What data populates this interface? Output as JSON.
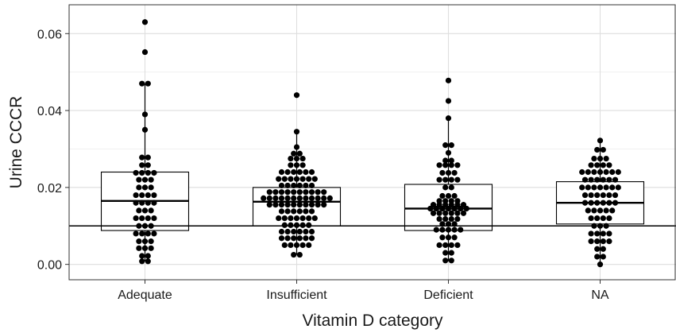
{
  "chart_data": {
    "type": "box-dotplot",
    "xlabel": "Vitamin D category",
    "ylabel": "Urine CCCR",
    "categories": [
      "Adequate",
      "Insufficient",
      "Deficient",
      "NA"
    ],
    "ylim": [
      -0.004,
      0.0675
    ],
    "yticks": [
      0.0,
      0.02,
      0.04,
      0.06
    ],
    "ytick_labels": [
      "0.00",
      "0.02",
      "0.04",
      "0.06"
    ],
    "grid": true,
    "reference_line": 0.01,
    "boxes": [
      {
        "category": "Adequate",
        "q1": 0.0088,
        "median": 0.0165,
        "q3": 0.024,
        "whisker_low": 0.0008,
        "whisker_high": 0.047
      },
      {
        "category": "Insufficient",
        "q1": 0.01,
        "median": 0.0163,
        "q3": 0.02,
        "whisker_low": 0.0025,
        "whisker_high": 0.0345
      },
      {
        "category": "Deficient",
        "q1": 0.0088,
        "median": 0.0145,
        "q3": 0.0208,
        "whisker_low": 0.0008,
        "whisker_high": 0.038
      },
      {
        "category": "NA",
        "q1": 0.0105,
        "median": 0.016,
        "q3": 0.0215,
        "whisker_low": 0.0,
        "whisker_high": 0.0322
      }
    ],
    "series": [
      {
        "category": "Adequate",
        "values": [
          0.063,
          0.0552,
          0.047,
          0.047,
          0.039,
          0.035,
          0.0278,
          0.0278,
          0.0258,
          0.0258,
          0.0238,
          0.0238,
          0.0238,
          0.0238,
          0.022,
          0.022,
          0.022,
          0.02,
          0.02,
          0.02,
          0.018,
          0.018,
          0.018,
          0.018,
          0.016,
          0.016,
          0.016,
          0.016,
          0.014,
          0.014,
          0.014,
          0.012,
          0.012,
          0.012,
          0.012,
          0.01,
          0.01,
          0.01,
          0.008,
          0.008,
          0.008,
          0.008,
          0.006,
          0.006,
          0.006,
          0.0042,
          0.0042,
          0.0042,
          0.0022,
          0.0022,
          0.0008,
          0.0008
        ]
      },
      {
        "category": "Insufficient",
        "values": [
          0.044,
          0.0345,
          0.0305,
          0.0288,
          0.0288,
          0.0275,
          0.0275,
          0.0275,
          0.0258,
          0.0258,
          0.0258,
          0.024,
          0.024,
          0.024,
          0.024,
          0.024,
          0.024,
          0.0222,
          0.0222,
          0.0222,
          0.0222,
          0.0222,
          0.0222,
          0.0222,
          0.0205,
          0.0205,
          0.0205,
          0.0205,
          0.0205,
          0.0205,
          0.0188,
          0.0188,
          0.0188,
          0.0188,
          0.0188,
          0.0188,
          0.0188,
          0.0188,
          0.0188,
          0.0188,
          0.0172,
          0.0172,
          0.0172,
          0.0172,
          0.0172,
          0.0172,
          0.0172,
          0.0172,
          0.0172,
          0.0172,
          0.0172,
          0.0172,
          0.0155,
          0.0155,
          0.0155,
          0.0155,
          0.0155,
          0.0155,
          0.0155,
          0.0155,
          0.0155,
          0.0155,
          0.0138,
          0.0138,
          0.0138,
          0.0138,
          0.0138,
          0.0138,
          0.012,
          0.012,
          0.012,
          0.012,
          0.012,
          0.012,
          0.012,
          0.0102,
          0.0102,
          0.0102,
          0.0102,
          0.0102,
          0.0085,
          0.0085,
          0.0085,
          0.0085,
          0.0085,
          0.0085,
          0.0068,
          0.0068,
          0.0068,
          0.0068,
          0.0068,
          0.0068,
          0.005,
          0.005,
          0.005,
          0.005,
          0.005,
          0.0025,
          0.0025
        ]
      },
      {
        "category": "Deficient",
        "values": [
          0.0478,
          0.0425,
          0.038,
          0.031,
          0.031,
          0.029,
          0.027,
          0.027,
          0.0258,
          0.0258,
          0.0258,
          0.0258,
          0.0238,
          0.0238,
          0.0238,
          0.022,
          0.022,
          0.022,
          0.022,
          0.02,
          0.02,
          0.0178,
          0.0178,
          0.0178,
          0.0165,
          0.0165,
          0.0165,
          0.0165,
          0.0155,
          0.0155,
          0.0155,
          0.0155,
          0.0155,
          0.0155,
          0.0145,
          0.0145,
          0.0145,
          0.0145,
          0.0145,
          0.0145,
          0.0145,
          0.0133,
          0.0133,
          0.0133,
          0.0133,
          0.0133,
          0.0133,
          0.0118,
          0.0118,
          0.0118,
          0.0118,
          0.0105,
          0.0105,
          0.0105,
          0.009,
          0.009,
          0.009,
          0.009,
          0.009,
          0.007,
          0.007,
          0.007,
          0.005,
          0.005,
          0.005,
          0.005,
          0.003,
          0.003,
          0.001,
          0.001
        ]
      },
      {
        "category": "NA",
        "values": [
          0.0322,
          0.0298,
          0.0298,
          0.0275,
          0.0275,
          0.0275,
          0.0258,
          0.0258,
          0.0258,
          0.0258,
          0.024,
          0.024,
          0.024,
          0.024,
          0.024,
          0.024,
          0.024,
          0.022,
          0.022,
          0.022,
          0.022,
          0.022,
          0.022,
          0.02,
          0.02,
          0.02,
          0.02,
          0.02,
          0.02,
          0.02,
          0.018,
          0.018,
          0.018,
          0.018,
          0.018,
          0.018,
          0.016,
          0.016,
          0.016,
          0.016,
          0.016,
          0.016,
          0.014,
          0.014,
          0.014,
          0.014,
          0.014,
          0.012,
          0.012,
          0.012,
          0.012,
          0.01,
          0.01,
          0.01,
          0.008,
          0.008,
          0.008,
          0.008,
          0.006,
          0.006,
          0.006,
          0.006,
          0.004,
          0.004,
          0.002,
          0.002,
          0.0
        ]
      }
    ],
    "colors": {
      "points": "#000000",
      "box": "#000000",
      "grid": "#dedede",
      "background": "#ffffff"
    }
  }
}
